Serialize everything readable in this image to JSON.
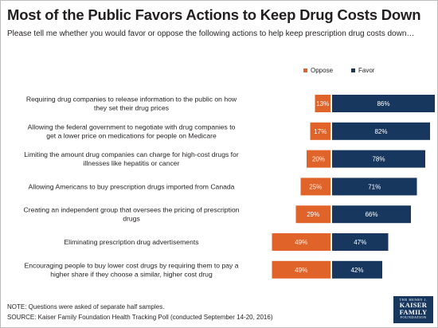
{
  "title": "Most of the Public Favors Actions to Keep Drug Costs Down",
  "subtitle": "Please tell me whether you would favor or oppose the following actions to help keep prescription drug costs down…",
  "colors": {
    "oppose": "#e0632a",
    "favor": "#17375e",
    "text": "#231f20"
  },
  "chart_data": {
    "type": "bar",
    "orientation": "horizontal-diverging",
    "categories": [
      [
        "Requiring drug companies to release information to the public on how",
        "they set their drug prices"
      ],
      [
        "Allowing the federal government to negotiate with drug companies to",
        "get a lower price on medications for people on Medicare"
      ],
      [
        "Limiting the amount drug companies can charge for high-cost drugs for",
        "illnesses like hepatitis or cancer"
      ],
      [
        "Allowing Americans to buy prescription drugs imported from Canada"
      ],
      [
        "Creating an independent group that oversees the pricing of prescription",
        "drugs"
      ],
      [
        "Eliminating prescription drug advertisements"
      ],
      [
        "Encouraging people to buy lower cost drugs by requiring them to pay a",
        "higher share if they choose a similar, higher cost drug"
      ]
    ],
    "series": [
      {
        "name": "Oppose",
        "values": [
          13,
          17,
          20,
          25,
          29,
          49,
          49
        ],
        "labels": [
          "13%",
          "17%",
          "20%",
          "25%",
          "29%",
          "49%",
          "49%"
        ]
      },
      {
        "name": "Favor",
        "values": [
          86,
          82,
          78,
          71,
          66,
          47,
          42
        ],
        "labels": [
          "86%",
          "82%",
          "78%",
          "71%",
          "66%",
          "47%",
          "42%"
        ]
      }
    ],
    "legend_position": "top-right",
    "grid": false
  },
  "notes": {
    "note": "NOTE: Questions were  asked of separate half samples.",
    "source": "SOURCE: Kaiser Family Foundation  Health Tracking Poll (conducted  September 14-20, 2016)"
  },
  "logo": {
    "line1": "THE HENRY J.",
    "line2": "KAISER",
    "line3": "FAMILY",
    "line4": "FOUNDATION"
  }
}
